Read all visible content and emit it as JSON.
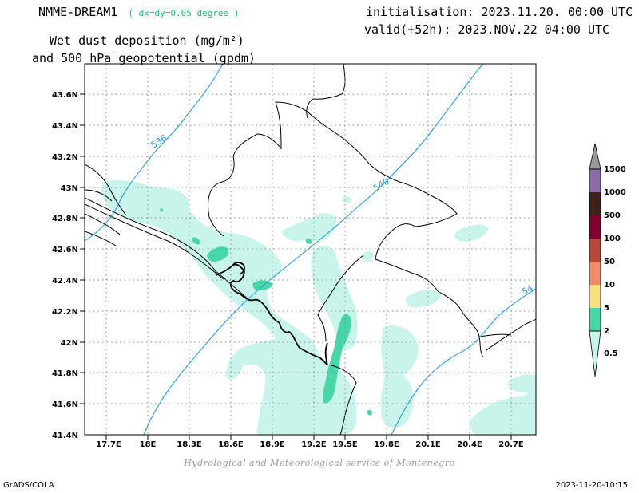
{
  "header": {
    "model": "NMME-DREAM1",
    "resolution": "( dx=dy=0.05 degree )",
    "init": "initialisation: 2023.11.20. 00:00 UTC",
    "valid": "valid(+52h): 2023.NOV.22 04:00 UTC",
    "variable_line1": "Wet dust deposition (mg/m²)",
    "variable_line2": "and 500 hPa geopotential (gpdm)"
  },
  "axes": {
    "lon_ticks": [
      "17.7E",
      "18E",
      "18.3E",
      "18.6E",
      "18.9E",
      "19.2E",
      "19.5E",
      "19.8E",
      "20.1E",
      "20.4E",
      "20.7E"
    ],
    "lat_ticks": [
      "43.6N",
      "43.4N",
      "43.2N",
      "43N",
      "42.8N",
      "42.6N",
      "42.4N",
      "42.2N",
      "42N",
      "41.8N",
      "41.6N",
      "41.4N"
    ],
    "grid": true
  },
  "contours": [
    {
      "label": "536"
    },
    {
      "label": "540"
    },
    {
      "label": "54"
    }
  ],
  "legend": {
    "levels": [
      "1500",
      "1000",
      "500",
      "100",
      "50",
      "10",
      "5",
      "2",
      "0.5"
    ],
    "colors": [
      "#999999",
      "#8c6ba8",
      "#3d2218",
      "#800032",
      "#b44a3c",
      "#f08c6c",
      "#f8e080",
      "#48d6a8",
      "#c8f4ec"
    ]
  },
  "colors": {
    "contour": "#2a9ae0",
    "fill_light": "#c8f4ec",
    "fill_mid": "#48d6a8"
  },
  "footer": {
    "credit": "Hydrological and Meteorological service of Montenegro",
    "software": "GrADS/COLA",
    "timestamp": "2023-11-20-10:15"
  }
}
